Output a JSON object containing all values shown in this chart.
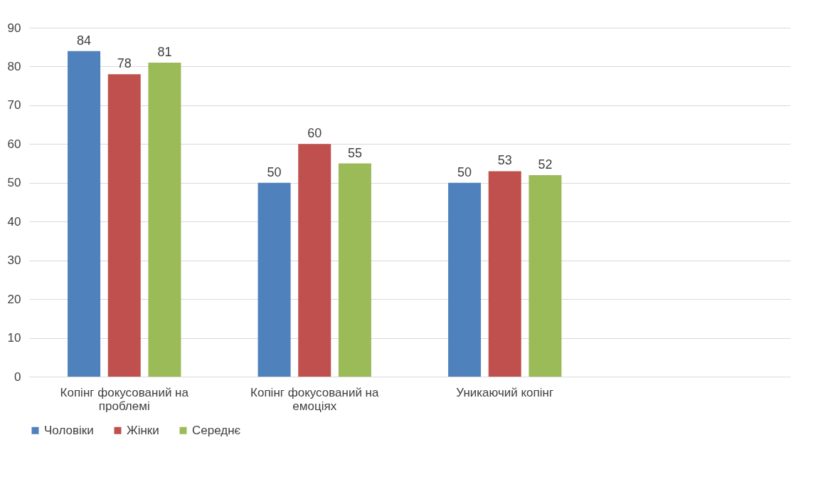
{
  "chart_data": {
    "type": "bar",
    "categories": [
      "Копінг фокусований на проблемі",
      "Копінг фокусований на емоціях",
      "Уникаючий копінг",
      null
    ],
    "series": [
      {
        "name": "Чоловіки",
        "color": "#4f81bd",
        "values": [
          84,
          50,
          50,
          null
        ]
      },
      {
        "name": "Жінки",
        "color": "#c0504d",
        "values": [
          78,
          60,
          53,
          null
        ]
      },
      {
        "name": "Середнє",
        "color": "#9bbb59",
        "values": [
          81,
          55,
          52,
          null
        ]
      }
    ],
    "ylim": [
      0,
      90
    ],
    "yticks": [
      0,
      10,
      20,
      30,
      40,
      50,
      60,
      70,
      80,
      90
    ],
    "grid": "y",
    "legend": "bottom",
    "data_labels": true
  }
}
